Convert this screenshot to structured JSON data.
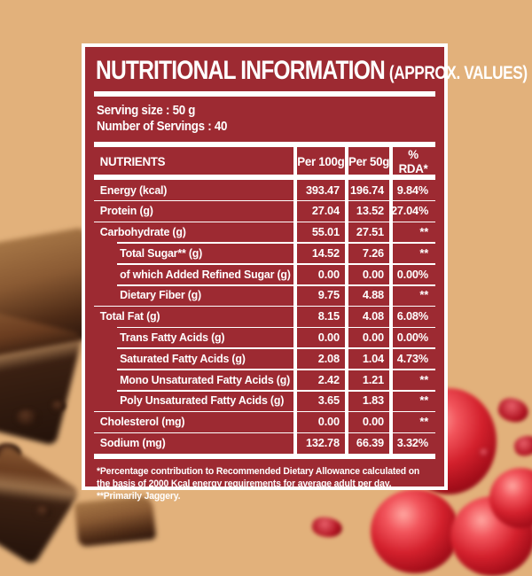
{
  "colors": {
    "background_tan": "#e2b17b",
    "panel_red": "#9d2a32",
    "text_white": "#ffffff"
  },
  "panel": {
    "title": "NUTRITIONAL INFORMATION",
    "title_suffix": "(APPROX. VALUES)",
    "serving_size": "Serving size : 50 g",
    "number_of_servings": "Number of Servings : 40",
    "footnote": "*Percentage contribution to Recommended Dietary Allowance calculated on the basis of 2000 Kcal energy requirements for average adult per day. **Primarily Jaggery."
  },
  "table": {
    "headers": [
      "NUTRIENTS",
      "Per 100g",
      "Per 50g",
      "% RDA*"
    ],
    "rows": [
      {
        "label": "Energy (kcal)",
        "per_100g": "393.47",
        "per_50g": "196.74",
        "rda": "9.84%",
        "sub": false
      },
      {
        "label": "Protein (g)",
        "per_100g": "27.04",
        "per_50g": "13.52",
        "rda": "27.04%",
        "sub": false
      },
      {
        "label": "Carbohydrate (g)",
        "per_100g": "55.01",
        "per_50g": "27.51",
        "rda": "**",
        "sub": false
      },
      {
        "label": "Total Sugar** (g)",
        "per_100g": "14.52",
        "per_50g": "7.26",
        "rda": "**",
        "sub": true
      },
      {
        "label": "of which Added Refined Sugar (g)",
        "per_100g": "0.00",
        "per_50g": "0.00",
        "rda": "0.00%",
        "sub": true
      },
      {
        "label": "Dietary Fiber (g)",
        "per_100g": "9.75",
        "per_50g": "4.88",
        "rda": "**",
        "sub": true
      },
      {
        "label": "Total Fat (g)",
        "per_100g": "8.15",
        "per_50g": "4.08",
        "rda": "6.08%",
        "sub": false
      },
      {
        "label": "Trans Fatty Acids (g)",
        "per_100g": "0.00",
        "per_50g": "0.00",
        "rda": "0.00%",
        "sub": true
      },
      {
        "label": "Saturated Fatty Acids (g)",
        "per_100g": "2.08",
        "per_50g": "1.04",
        "rda": "4.73%",
        "sub": true
      },
      {
        "label": "Mono Unsaturated Fatty Acids (g)",
        "per_100g": "2.42",
        "per_50g": "1.21",
        "rda": "**",
        "sub": true
      },
      {
        "label": "Poly Unsaturated Fatty Acids (g)",
        "per_100g": "3.65",
        "per_50g": "1.83",
        "rda": "**",
        "sub": true
      },
      {
        "label": "Cholesterol (mg)",
        "per_100g": "0.00",
        "per_50g": "0.00",
        "rda": "**",
        "sub": false
      },
      {
        "label": "Sodium (mg)",
        "per_100g": "132.78",
        "per_50g": "66.39",
        "rda": "3.32%",
        "sub": false
      }
    ]
  },
  "decorations": {
    "left": "chocolate-pieces",
    "bottom_left": "chocolate-crumbs",
    "bottom_right": "cherries"
  }
}
